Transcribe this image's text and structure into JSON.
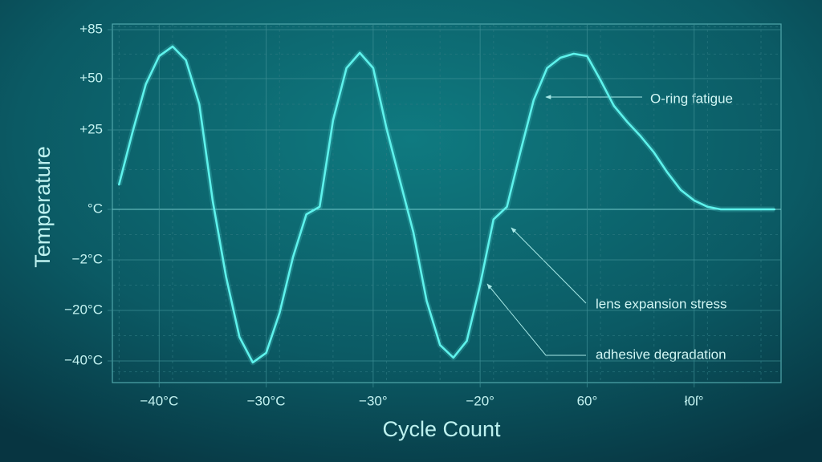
{
  "chart_data": {
    "type": "line",
    "x_label": "Cycle Count",
    "y_label": "Temperature",
    "categories": [
      null,
      null,
      null,
      "−40°C",
      null,
      null,
      null,
      null,
      null,
      null,
      null,
      "−30°C",
      null,
      null,
      null,
      null,
      null,
      null,
      null,
      "−30°",
      null,
      null,
      null,
      null,
      null,
      null,
      null,
      "−20°",
      null,
      null,
      null,
      null,
      null,
      null,
      null,
      "60°",
      null,
      null,
      null,
      null,
      null,
      null,
      null,
      "ł0ſ°",
      null,
      null,
      null,
      null,
      null,
      null
    ],
    "values": [
      7.8,
      24.2,
      47.3,
      66.1,
      73.0,
      63.2,
      37.5,
      2.8,
      -8.0,
      -30.5,
      -40.6,
      -36.8,
      -21.0,
      -1.9,
      -0.2,
      0.8,
      29.7,
      57.5,
      68.4,
      57.5,
      25.8,
      9.1,
      -0.9,
      -16.6,
      -33.7,
      -38.7,
      -32.1,
      -10.9,
      -0.4,
      0.8,
      17.9,
      39.5,
      57.5,
      64.9,
      67.8,
      66.1,
      49.2,
      36.7,
      28.9,
      23.0,
      17.9,
      11.6,
      6.1,
      2.8,
      0.8,
      0,
      0,
      0,
      0,
      0
    ],
    "color": "#5ef2ec",
    "yscale": "piecewise",
    "ylim": [
      -48.6,
      89
    ],
    "yticks": [
      {
        "value": 85,
        "label": "+85"
      },
      {
        "value": 50,
        "label": "+50"
      },
      {
        "value": 25,
        "label": "+25"
      },
      {
        "value": 0,
        "label": "°C"
      },
      {
        "value": -2,
        "label": "−2°C"
      },
      {
        "value": -20,
        "label": "−20°C"
      },
      {
        "value": -40,
        "label": "−40°C"
      }
    ],
    "grid": true,
    "annotations": [
      "O-ring fatigue",
      "lens expansion stress",
      "adhesive degradation"
    ]
  }
}
